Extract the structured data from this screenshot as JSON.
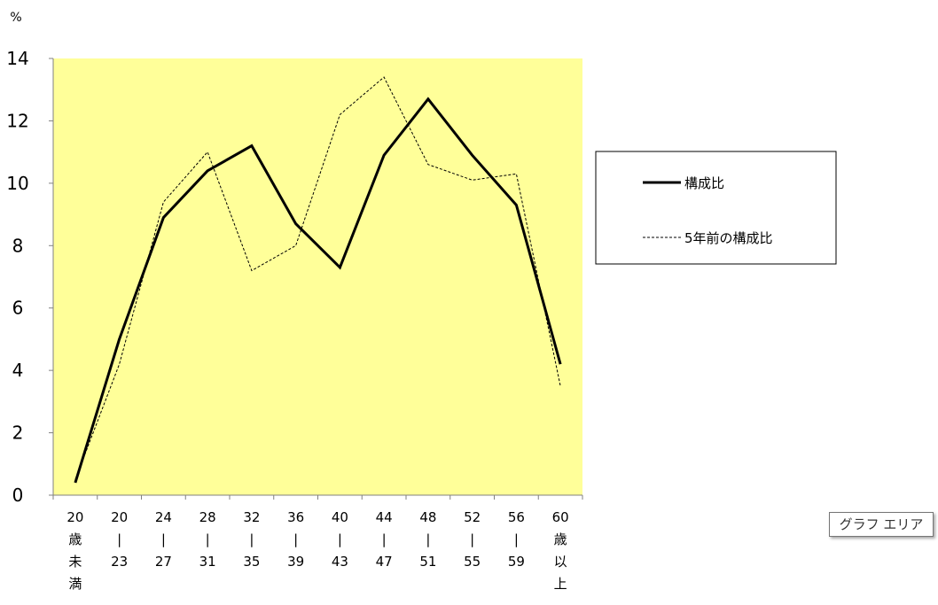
{
  "chart_data": {
    "type": "line",
    "ylabel": "%",
    "ylim": [
      0,
      14
    ],
    "yticks": [
      0,
      2,
      4,
      6,
      8,
      10,
      12,
      14
    ],
    "grid": false,
    "legend": "right",
    "categories": [
      [
        "20",
        "歳",
        "未",
        "満"
      ],
      [
        "20",
        "|",
        "23"
      ],
      [
        "24",
        "|",
        "27"
      ],
      [
        "28",
        "|",
        "31"
      ],
      [
        "32",
        "|",
        "35"
      ],
      [
        "36",
        "|",
        "39"
      ],
      [
        "40",
        "|",
        "43"
      ],
      [
        "44",
        "|",
        "47"
      ],
      [
        "48",
        "|",
        "51"
      ],
      [
        "52",
        "|",
        "55"
      ],
      [
        "56",
        "|",
        "59"
      ],
      [
        "60",
        "歳",
        "以",
        "上"
      ]
    ],
    "series": [
      {
        "name": "構成比",
        "style": "solid",
        "color": "#000000",
        "values": [
          0.4,
          5.0,
          8.9,
          10.4,
          11.2,
          8.7,
          7.3,
          10.9,
          12.7,
          10.9,
          9.3,
          4.2
        ]
      },
      {
        "name": "5年前の構成比",
        "style": "dashed",
        "color": "#000000",
        "values": [
          0.5,
          4.2,
          9.4,
          11.0,
          7.2,
          8.0,
          12.2,
          13.4,
          10.6,
          10.1,
          10.3,
          3.5
        ]
      }
    ],
    "plot_background": "#ffff99"
  },
  "tooltip": {
    "text": "グラフ エリア"
  }
}
